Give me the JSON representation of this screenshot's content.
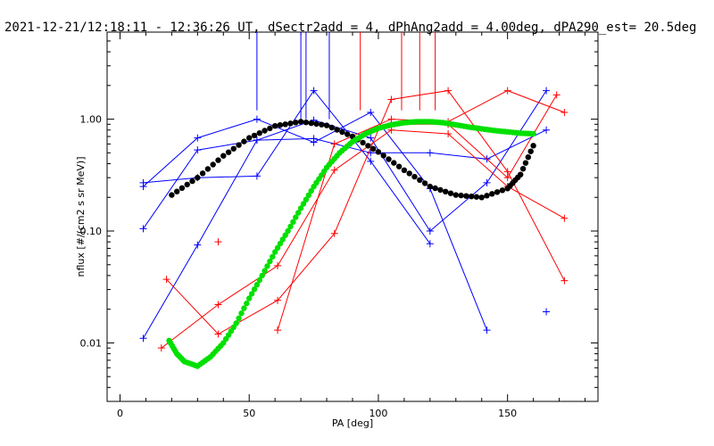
{
  "chart_data": {
    "type": "scatter",
    "title": "2021-12-21/12:18:11 - 12:36:26 UT, dSectr2add = 4, dPhAng2add = 4.00deg, dPA290_est=  20.5deg",
    "xlabel": "PA [deg]",
    "ylabel": "nflux [#/(cm2 s sr MeV)]",
    "xlim": [
      -5,
      185
    ],
    "ylim": [
      0.003,
      6.0
    ],
    "yscale": "log",
    "grid": false,
    "x_ticks": [
      0,
      50,
      100,
      150
    ],
    "x_tick_labels": [
      "0",
      "50",
      "100",
      "150"
    ],
    "y_ticks": [
      0.01,
      0.1,
      1.0
    ],
    "y_tick_labels": [
      "0.01",
      "0.10",
      "1.00"
    ],
    "colors": {
      "blue": "#0000ff",
      "red": "#ff0000",
      "black": "#000000",
      "green": "#00e000"
    },
    "series": [
      {
        "color": "blue",
        "points": [
          [
            9,
            0.25
          ],
          [
            30,
            0.68
          ],
          [
            53,
            1.0
          ],
          [
            75,
            0.62
          ],
          [
            97,
            1.15
          ],
          [
            120,
            0.24
          ],
          [
            142,
            0.013
          ]
        ]
      },
      {
        "color": "blue",
        "points": [
          [
            9,
            0.27
          ],
          [
            30,
            0.3
          ],
          [
            53,
            0.31
          ],
          [
            75,
            1.8
          ],
          [
            97,
            0.42
          ],
          [
            120,
            0.077
          ]
        ]
      },
      {
        "color": "blue",
        "points": [
          [
            9,
            0.011
          ],
          [
            30,
            0.075
          ],
          [
            53,
            0.65
          ],
          [
            75,
            0.98
          ],
          [
            97,
            0.68
          ],
          [
            120,
            0.1
          ],
          [
            142,
            0.27
          ],
          [
            165,
            1.8
          ]
        ]
      },
      {
        "color": "blue",
        "points": [
          [
            9,
            0.105
          ],
          [
            30,
            0.53
          ],
          [
            53,
            0.65
          ],
          [
            75,
            0.67
          ],
          [
            97,
            0.5
          ],
          [
            120,
            0.5
          ],
          [
            142,
            0.44
          ],
          [
            165,
            0.8
          ]
        ]
      },
      {
        "color": "red",
        "points": [
          [
            18,
            0.037
          ],
          [
            38,
            0.012
          ],
          [
            61,
            0.024
          ],
          [
            83,
            0.095
          ],
          [
            105,
            1.5
          ],
          [
            127,
            1.8
          ],
          [
            150,
            0.34
          ],
          [
            172,
            0.036
          ]
        ]
      },
      {
        "color": "red",
        "points": [
          [
            16,
            0.009
          ],
          [
            38,
            0.022
          ],
          [
            61,
            0.049
          ],
          [
            83,
            0.35
          ],
          [
            105,
            0.8
          ],
          [
            127,
            0.74
          ],
          [
            150,
            0.25
          ],
          [
            172,
            0.13
          ]
        ]
      },
      {
        "color": "red",
        "points": [
          [
            61,
            0.013
          ],
          [
            83,
            0.6
          ],
          [
            105,
            1.0
          ],
          [
            127,
            0.95
          ],
          [
            150,
            1.8
          ],
          [
            172,
            1.15
          ]
        ]
      },
      {
        "color": "red",
        "points": [
          [
            105,
            0.9
          ],
          [
            127,
            0.9
          ],
          [
            150,
            0.3
          ],
          [
            169,
            1.65
          ]
        ]
      }
    ],
    "isolated_points": [
      {
        "color": "red",
        "x": 38,
        "y": 0.08
      },
      {
        "color": "blue",
        "x": 165,
        "y": 0.019
      }
    ],
    "error_bars": [
      {
        "color": "blue",
        "x": 53,
        "y_from": 1.2,
        "y_to": 6.0
      },
      {
        "color": "blue",
        "x": 70,
        "y_from": 1.0,
        "y_to": 6.0
      },
      {
        "color": "blue",
        "x": 72,
        "y_from": 1.0,
        "y_to": 6.0
      },
      {
        "color": "blue",
        "x": 81,
        "y_from": 1.0,
        "y_to": 6.0
      },
      {
        "color": "red",
        "x": 93,
        "y_from": 1.2,
        "y_to": 6.0
      },
      {
        "color": "red",
        "x": 109,
        "y_from": 1.2,
        "y_to": 6.0
      },
      {
        "color": "red",
        "x": 116,
        "y_from": 1.2,
        "y_to": 6.0
      },
      {
        "color": "red",
        "x": 122,
        "y_from": 1.2,
        "y_to": 6.0
      }
    ],
    "fit_curves": [
      {
        "color": "black",
        "points": [
          [
            20,
            0.21
          ],
          [
            30,
            0.3
          ],
          [
            40,
            0.47
          ],
          [
            50,
            0.68
          ],
          [
            60,
            0.87
          ],
          [
            70,
            0.95
          ],
          [
            80,
            0.88
          ],
          [
            90,
            0.7
          ],
          [
            100,
            0.51
          ],
          [
            110,
            0.35
          ],
          [
            120,
            0.25
          ],
          [
            130,
            0.21
          ],
          [
            140,
            0.2
          ],
          [
            150,
            0.24
          ],
          [
            155,
            0.32
          ],
          [
            160,
            0.58
          ]
        ]
      },
      {
        "color": "green",
        "points": [
          [
            19,
            0.0105
          ],
          [
            22,
            0.008
          ],
          [
            25,
            0.0068
          ],
          [
            30,
            0.0062
          ],
          [
            35,
            0.0075
          ],
          [
            40,
            0.01
          ],
          [
            45,
            0.015
          ],
          [
            50,
            0.025
          ],
          [
            55,
            0.04
          ],
          [
            60,
            0.065
          ],
          [
            65,
            0.1
          ],
          [
            70,
            0.16
          ],
          [
            75,
            0.25
          ],
          [
            80,
            0.37
          ],
          [
            85,
            0.5
          ],
          [
            90,
            0.63
          ],
          [
            95,
            0.74
          ],
          [
            100,
            0.83
          ],
          [
            105,
            0.89
          ],
          [
            110,
            0.93
          ],
          [
            115,
            0.95
          ],
          [
            120,
            0.95
          ],
          [
            125,
            0.93
          ],
          [
            130,
            0.89
          ],
          [
            135,
            0.85
          ],
          [
            140,
            0.82
          ],
          [
            145,
            0.79
          ],
          [
            150,
            0.77
          ],
          [
            155,
            0.75
          ],
          [
            160,
            0.74
          ]
        ]
      }
    ]
  }
}
